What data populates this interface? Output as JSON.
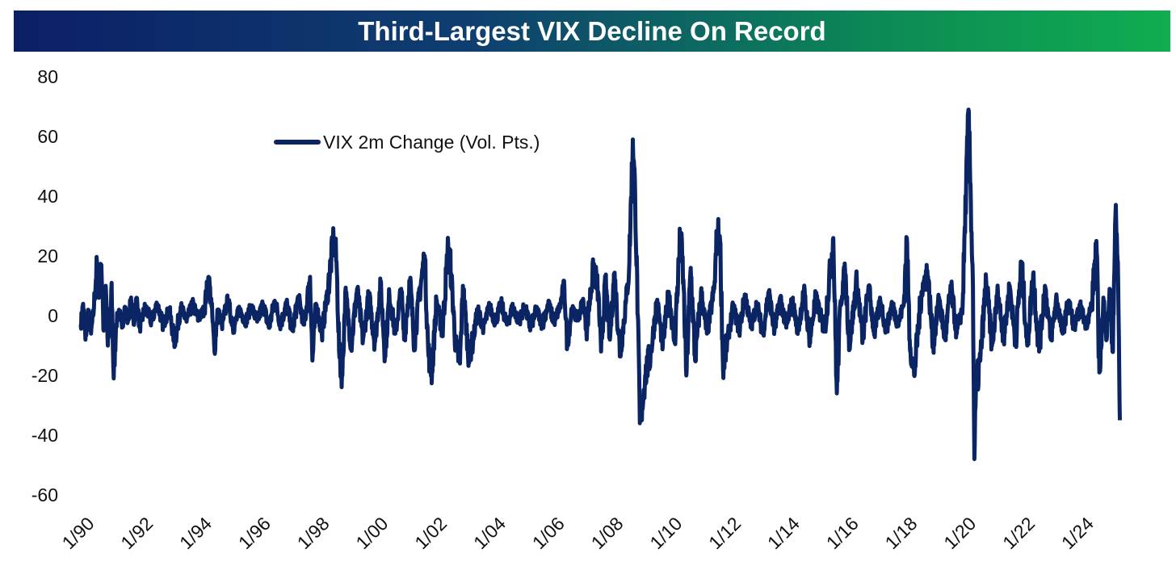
{
  "banner": {
    "title": "Third-Largest VIX Decline On Record"
  },
  "colors": {
    "series": "#0b2463",
    "banner_start": "#0c1f66",
    "banner_end": "#10ad50"
  },
  "chart_data": {
    "type": "line",
    "title": "Third-Largest VIX Decline On Record",
    "xlabel": "",
    "ylabel": "",
    "ylim": [
      -60,
      80
    ],
    "xlim": [
      1990.0,
      2025.5
    ],
    "yticks": [
      80,
      60,
      40,
      20,
      0,
      -20,
      -40,
      -60
    ],
    "ytick_labels": [
      "80",
      "60",
      "40",
      "20",
      "0",
      "-20",
      "-40",
      "-60"
    ],
    "xticks": [
      1990,
      1992,
      1994,
      1996,
      1998,
      2000,
      2002,
      2004,
      2006,
      2008,
      2010,
      2012,
      2014,
      2016,
      2018,
      2020,
      2022,
      2024
    ],
    "xtick_labels": [
      "1/90",
      "1/92",
      "1/94",
      "1/96",
      "1/98",
      "1/00",
      "1/02",
      "1/04",
      "1/06",
      "1/08",
      "1/10",
      "1/12",
      "1/14",
      "1/16",
      "1/18",
      "1/20",
      "1/22",
      "1/24"
    ],
    "legend": {
      "position": "top-left"
    },
    "series": [
      {
        "name": "VIX 2m Change (Vol. Pts.)",
        "points": [
          [
            1990.0,
            -3
          ],
          [
            1990.08,
            4
          ],
          [
            1990.16,
            -8
          ],
          [
            1990.25,
            2
          ],
          [
            1990.35,
            -6
          ],
          [
            1990.45,
            3
          ],
          [
            1990.55,
            18
          ],
          [
            1990.62,
            6
          ],
          [
            1990.7,
            17
          ],
          [
            1990.78,
            -5
          ],
          [
            1990.85,
            10
          ],
          [
            1990.92,
            -10
          ],
          [
            1991.0,
            -4
          ],
          [
            1991.05,
            11
          ],
          [
            1991.12,
            -21
          ],
          [
            1991.2,
            -3
          ],
          [
            1991.3,
            2
          ],
          [
            1991.4,
            -4
          ],
          [
            1991.5,
            3
          ],
          [
            1991.6,
            -2
          ],
          [
            1991.7,
            5
          ],
          [
            1991.8,
            -3
          ],
          [
            1991.9,
            6
          ],
          [
            1992.0,
            -4
          ],
          [
            1992.2,
            3
          ],
          [
            1992.4,
            -2
          ],
          [
            1992.6,
            4
          ],
          [
            1992.8,
            -3
          ],
          [
            1993.0,
            2
          ],
          [
            1993.2,
            -9
          ],
          [
            1993.4,
            3
          ],
          [
            1993.6,
            -2
          ],
          [
            1993.8,
            4
          ],
          [
            1994.0,
            -1
          ],
          [
            1994.2,
            2
          ],
          [
            1994.35,
            13
          ],
          [
            1994.45,
            3
          ],
          [
            1994.55,
            -12
          ],
          [
            1994.65,
            2
          ],
          [
            1994.8,
            -3
          ],
          [
            1995.0,
            5
          ],
          [
            1995.2,
            -4
          ],
          [
            1995.4,
            2
          ],
          [
            1995.6,
            -2
          ],
          [
            1995.8,
            3
          ],
          [
            1996.0,
            -2
          ],
          [
            1996.2,
            4
          ],
          [
            1996.4,
            -4
          ],
          [
            1996.6,
            5
          ],
          [
            1996.8,
            -3
          ],
          [
            1997.0,
            4
          ],
          [
            1997.2,
            -5
          ],
          [
            1997.4,
            6
          ],
          [
            1997.6,
            -3
          ],
          [
            1997.8,
            13
          ],
          [
            1997.88,
            -15
          ],
          [
            1998.0,
            4
          ],
          [
            1998.2,
            -6
          ],
          [
            1998.4,
            8
          ],
          [
            1998.6,
            26
          ],
          [
            1998.7,
            18
          ],
          [
            1998.8,
            -14
          ],
          [
            1998.9,
            -20
          ],
          [
            1999.0,
            8
          ],
          [
            1999.2,
            -10
          ],
          [
            1999.4,
            9
          ],
          [
            1999.6,
            -8
          ],
          [
            1999.8,
            7
          ],
          [
            2000.0,
            -9
          ],
          [
            2000.2,
            10
          ],
          [
            2000.35,
            -13
          ],
          [
            2000.5,
            7
          ],
          [
            2000.7,
            -6
          ],
          [
            2000.9,
            9
          ],
          [
            2001.0,
            -8
          ],
          [
            2001.2,
            12
          ],
          [
            2001.35,
            -10
          ],
          [
            2001.5,
            6
          ],
          [
            2001.7,
            20
          ],
          [
            2001.82,
            -12
          ],
          [
            2001.95,
            -19
          ],
          [
            2002.1,
            5
          ],
          [
            2002.3,
            -6
          ],
          [
            2002.5,
            24
          ],
          [
            2002.6,
            14
          ],
          [
            2002.75,
            -10
          ],
          [
            2002.9,
            -16
          ],
          [
            2003.0,
            10
          ],
          [
            2003.2,
            -14
          ],
          [
            2003.35,
            -8
          ],
          [
            2003.5,
            2
          ],
          [
            2003.7,
            -4
          ],
          [
            2003.9,
            3
          ],
          [
            2004.1,
            -2
          ],
          [
            2004.3,
            4
          ],
          [
            2004.5,
            -3
          ],
          [
            2004.7,
            3
          ],
          [
            2004.9,
            -2
          ],
          [
            2005.1,
            3
          ],
          [
            2005.3,
            -4
          ],
          [
            2005.5,
            2
          ],
          [
            2005.7,
            -3
          ],
          [
            2005.9,
            4
          ],
          [
            2006.1,
            -2
          ],
          [
            2006.3,
            3
          ],
          [
            2006.45,
            10
          ],
          [
            2006.55,
            -10
          ],
          [
            2006.7,
            2
          ],
          [
            2006.9,
            -1
          ],
          [
            2007.1,
            5
          ],
          [
            2007.2,
            -5
          ],
          [
            2007.45,
            17
          ],
          [
            2007.6,
            8
          ],
          [
            2007.7,
            -12
          ],
          [
            2007.85,
            12
          ],
          [
            2008.0,
            -8
          ],
          [
            2008.15,
            14
          ],
          [
            2008.35,
            -13
          ],
          [
            2008.55,
            5
          ],
          [
            2008.65,
            15
          ],
          [
            2008.78,
            59
          ],
          [
            2008.86,
            40
          ],
          [
            2008.95,
            0
          ],
          [
            2009.02,
            -36
          ],
          [
            2009.1,
            -30
          ],
          [
            2009.2,
            -20
          ],
          [
            2009.4,
            -12
          ],
          [
            2009.6,
            5
          ],
          [
            2009.8,
            -10
          ],
          [
            2010.0,
            8
          ],
          [
            2010.2,
            -9
          ],
          [
            2010.4,
            28
          ],
          [
            2010.5,
            12
          ],
          [
            2010.6,
            -20
          ],
          [
            2010.75,
            16
          ],
          [
            2010.9,
            -15
          ],
          [
            2011.1,
            8
          ],
          [
            2011.3,
            -6
          ],
          [
            2011.55,
            9
          ],
          [
            2011.65,
            28
          ],
          [
            2011.75,
            25
          ],
          [
            2011.85,
            -18
          ],
          [
            2012.0,
            -8
          ],
          [
            2012.2,
            3
          ],
          [
            2012.4,
            -5
          ],
          [
            2012.6,
            7
          ],
          [
            2012.8,
            -4
          ],
          [
            2013.0,
            4
          ],
          [
            2013.2,
            -6
          ],
          [
            2013.4,
            8
          ],
          [
            2013.6,
            -5
          ],
          [
            2013.8,
            6
          ],
          [
            2014.0,
            -4
          ],
          [
            2014.2,
            5
          ],
          [
            2014.4,
            -5
          ],
          [
            2014.6,
            8
          ],
          [
            2014.8,
            -8
          ],
          [
            2015.0,
            6
          ],
          [
            2015.3,
            -5
          ],
          [
            2015.6,
            26
          ],
          [
            2015.72,
            -26
          ],
          [
            2015.85,
            5
          ],
          [
            2016.0,
            15
          ],
          [
            2016.15,
            -10
          ],
          [
            2016.4,
            12
          ],
          [
            2016.6,
            -8
          ],
          [
            2016.8,
            10
          ],
          [
            2017.0,
            -6
          ],
          [
            2017.2,
            5
          ],
          [
            2017.4,
            -5
          ],
          [
            2017.6,
            4
          ],
          [
            2017.8,
            -3
          ],
          [
            2018.0,
            4
          ],
          [
            2018.1,
            26
          ],
          [
            2018.2,
            -8
          ],
          [
            2018.35,
            -20
          ],
          [
            2018.6,
            8
          ],
          [
            2018.8,
            15
          ],
          [
            2019.0,
            -10
          ],
          [
            2019.2,
            6
          ],
          [
            2019.4,
            -8
          ],
          [
            2019.6,
            10
          ],
          [
            2019.8,
            -6
          ],
          [
            2020.0,
            3
          ],
          [
            2020.12,
            44
          ],
          [
            2020.2,
            69
          ],
          [
            2020.28,
            38
          ],
          [
            2020.35,
            10
          ],
          [
            2020.4,
            -48
          ],
          [
            2020.45,
            -25
          ],
          [
            2020.6,
            -15
          ],
          [
            2020.8,
            12
          ],
          [
            2021.0,
            -10
          ],
          [
            2021.2,
            8
          ],
          [
            2021.4,
            -8
          ],
          [
            2021.6,
            10
          ],
          [
            2021.8,
            -9
          ],
          [
            2022.0,
            18
          ],
          [
            2022.2,
            -10
          ],
          [
            2022.4,
            14
          ],
          [
            2022.6,
            -12
          ],
          [
            2022.8,
            10
          ],
          [
            2023.0,
            -8
          ],
          [
            2023.2,
            6
          ],
          [
            2023.4,
            -6
          ],
          [
            2023.6,
            5
          ],
          [
            2023.8,
            -4
          ],
          [
            2024.0,
            3
          ],
          [
            2024.2,
            -3
          ],
          [
            2024.4,
            4
          ],
          [
            2024.55,
            25
          ],
          [
            2024.65,
            -19
          ],
          [
            2024.8,
            5
          ],
          [
            2024.9,
            -8
          ],
          [
            2025.0,
            9
          ],
          [
            2025.1,
            -12
          ],
          [
            2025.2,
            34
          ],
          [
            2025.28,
            18
          ],
          [
            2025.35,
            -35
          ]
        ]
      }
    ]
  }
}
